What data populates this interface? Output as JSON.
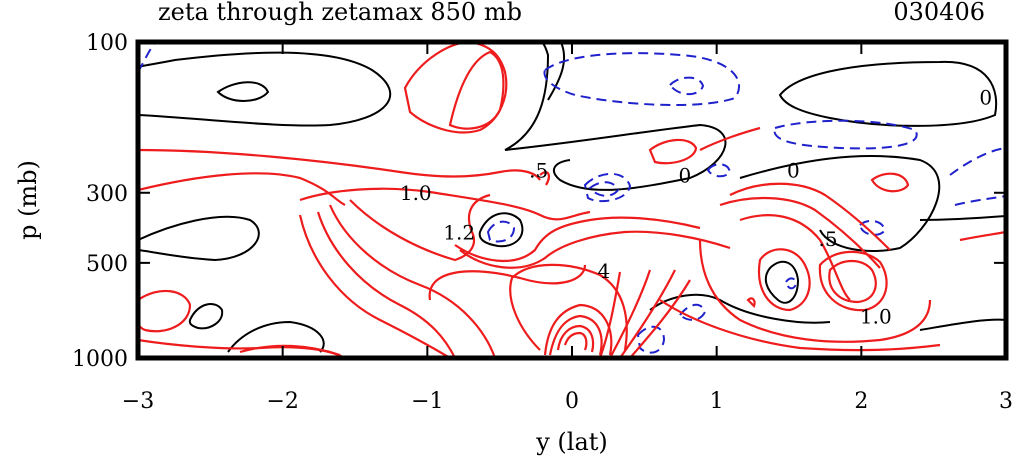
{
  "chart_data": {
    "type": "contour",
    "title": "zeta through zetamax 850 mb",
    "date_label": "030406",
    "xlabel": "y (lat)",
    "ylabel": "p (mb)",
    "xlim": [
      -3,
      3
    ],
    "ylim": [
      1000,
      100
    ],
    "x_ticks": [
      -3,
      -2,
      -1,
      0,
      1,
      2,
      3
    ],
    "x_tick_labels": [
      "−3",
      "−2",
      "−1",
      "0",
      "1",
      "2",
      "3"
    ],
    "y_ticks": [
      100,
      300,
      500,
      1000
    ],
    "y_tick_labels": [
      "100",
      "300",
      "500",
      "1000"
    ],
    "colors": {
      "positive": "#ee1c1c",
      "zero": "#000000",
      "negative": "#1f22cc"
    },
    "contour_labels": [
      {
        "text": "0",
        "y": 2.86,
        "p": 150
      },
      {
        "text": "0",
        "y": 0.78,
        "p": 265
      },
      {
        "text": "0",
        "y": 1.53,
        "p": 255
      },
      {
        "text": "1.0",
        "y": -1.08,
        "p": 300
      },
      {
        "text": ".5",
        "y": -0.23,
        "p": 255
      },
      {
        "text": "1.2",
        "y": -0.78,
        "p": 400
      },
      {
        "text": "4",
        "y": 0.22,
        "p": 530
      },
      {
        "text": ".5",
        "y": 1.77,
        "p": 420
      },
      {
        "text": "1.0",
        "y": 2.1,
        "p": 740
      }
    ]
  }
}
